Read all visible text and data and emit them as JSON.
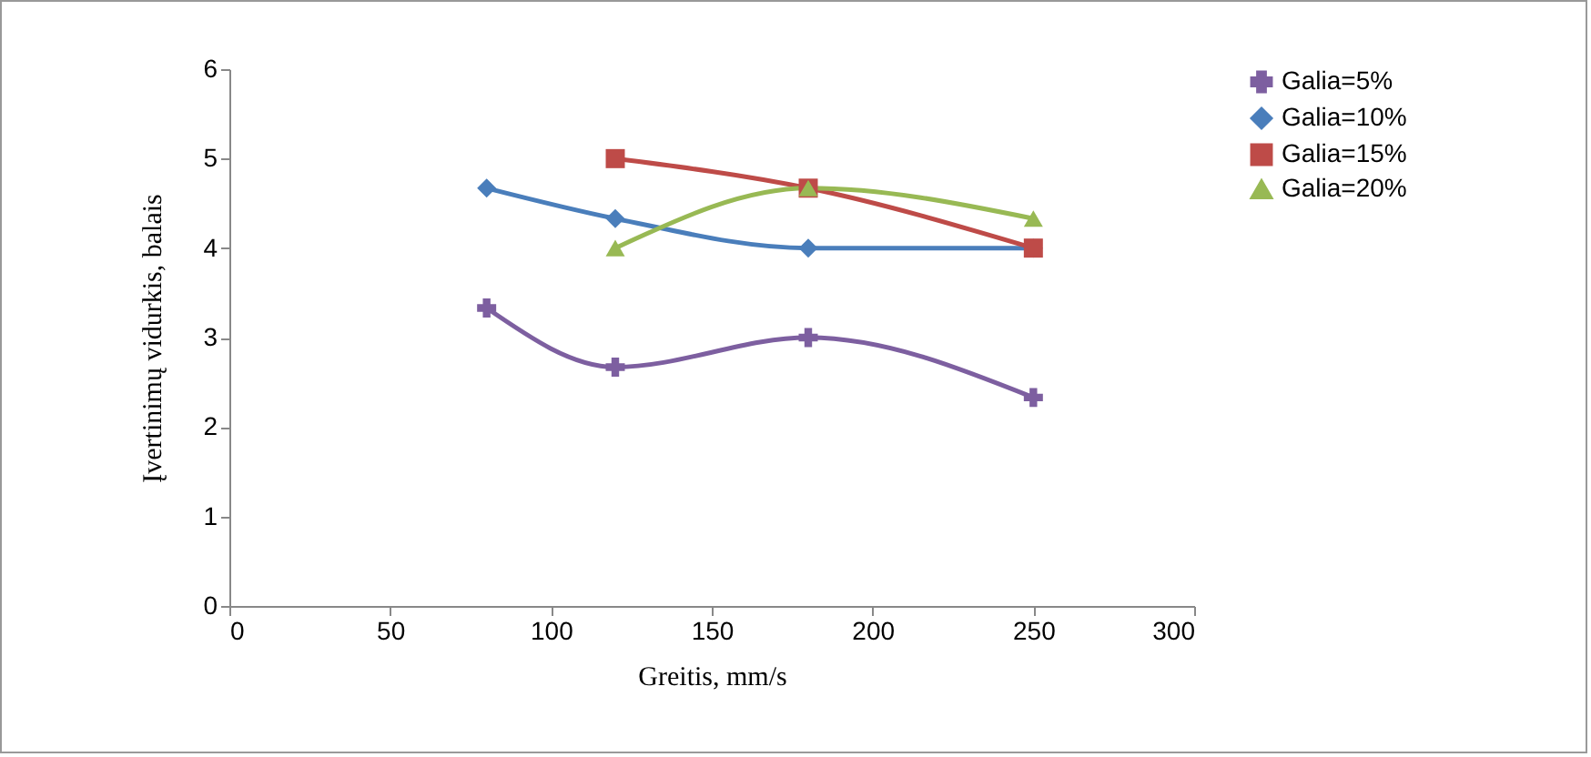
{
  "chart_data": {
    "type": "line",
    "xlabel": "Greitis, mm/s",
    "ylabel": "Įvertinimų vidurkis, balais",
    "xlim": [
      0,
      300
    ],
    "xticks": [
      0,
      50,
      100,
      150,
      200,
      250,
      300
    ],
    "ylim": [
      0,
      6
    ],
    "yticks": [
      0,
      1,
      2,
      3,
      4,
      5,
      6
    ],
    "legend": "right",
    "grid": false,
    "series": [
      {
        "name": "Galia=5%",
        "color": "#7d5fa0",
        "marker": "cross",
        "x": [
          80,
          120,
          180,
          250
        ],
        "values": [
          3.33,
          2.67,
          3,
          2.33
        ]
      },
      {
        "name": "Galia=10%",
        "color": "#4a7ebb",
        "marker": "diamond",
        "x": [
          80,
          120,
          180,
          250
        ],
        "values": [
          4.67,
          4.33,
          4,
          4
        ]
      },
      {
        "name": "Galia=15%",
        "color": "#be4b48",
        "marker": "square",
        "x": [
          120,
          180,
          250
        ],
        "values": [
          5,
          4.67,
          4
        ]
      },
      {
        "name": "Galia=20%",
        "color": "#98b954",
        "marker": "triangle",
        "x": [
          120,
          180,
          250
        ],
        "values": [
          4,
          4.67,
          4.33
        ]
      }
    ]
  }
}
